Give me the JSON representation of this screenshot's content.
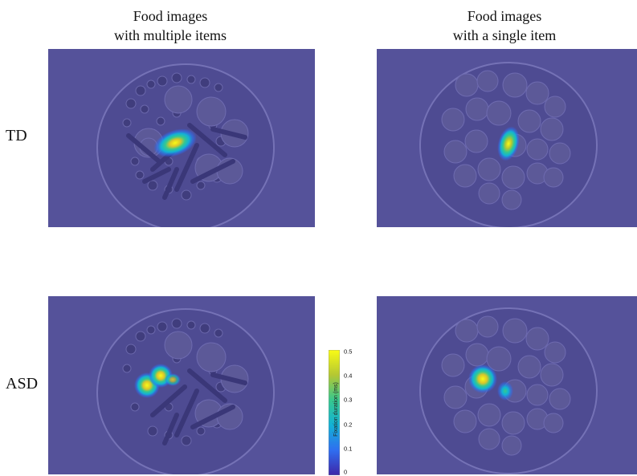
{
  "columns": [
    {
      "line1": "Food images",
      "line2": "with multiple items"
    },
    {
      "line1": "Food images",
      "line2": "with a single item"
    }
  ],
  "rows": [
    "TD",
    "ASD"
  ],
  "colorbar": {
    "label": "Fixation duration (ms)",
    "ticks": [
      "0.5",
      "0.4",
      "0.3",
      "0.2",
      "0.1",
      "0"
    ]
  },
  "colors": {
    "background": "#55529a",
    "colormap": [
      "#3e26a8",
      "#2f6ef0",
      "#12b2d6",
      "#37c88e",
      "#b4c733",
      "#f9fb15"
    ]
  }
}
